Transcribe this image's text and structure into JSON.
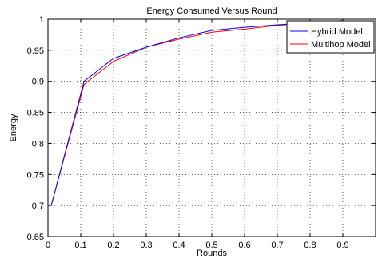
{
  "chart_data": {
    "type": "line",
    "title": "Energy Consumed Versus Round",
    "xlabel": "Rounds",
    "ylabel": "Energy",
    "xlim": [
      0,
      1
    ],
    "ylim": [
      0.65,
      1
    ],
    "xticks": [
      "0",
      "0.1",
      "0.2",
      "0.3",
      "0.4",
      "0.5",
      "0.6",
      "0.7",
      "0.8",
      "0.9"
    ],
    "yticks": [
      "0.65",
      "0.7",
      "0.75",
      "0.8",
      "0.85",
      "0.9",
      "0.95",
      "1"
    ],
    "grid": true,
    "grid_style": "dotted",
    "legend_position": "top-right",
    "series": [
      {
        "name": "Hybrid Model",
        "color": "#0000ff",
        "x": [
          0.01,
          0.11,
          0.2,
          0.3,
          0.4,
          0.5,
          0.6,
          0.7,
          0.8,
          0.9
        ],
        "y": [
          0.7,
          0.9,
          0.937,
          0.955,
          0.97,
          0.982,
          0.987,
          0.991,
          0.994,
          0.996
        ]
      },
      {
        "name": "Multihop Model",
        "color": "#ff0000",
        "x": [
          0.01,
          0.11,
          0.2,
          0.3,
          0.4,
          0.5,
          0.6,
          0.7,
          0.8,
          0.9
        ],
        "y": [
          0.7,
          0.895,
          0.932,
          0.955,
          0.968,
          0.979,
          0.984,
          0.99,
          0.994,
          0.998
        ]
      }
    ]
  }
}
